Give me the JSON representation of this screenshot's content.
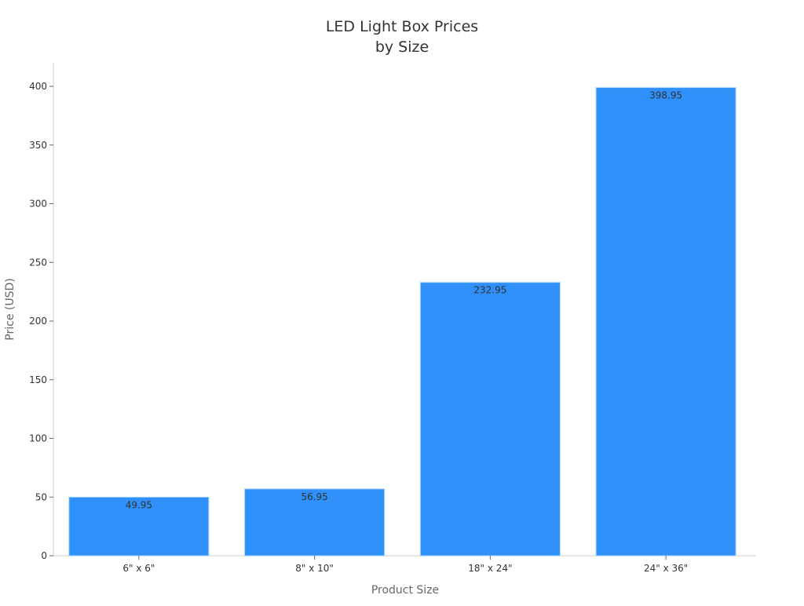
{
  "chart_data": {
    "type": "bar",
    "title": [
      "LED Light Box Prices",
      "by Size"
    ],
    "xlabel": "Product Size",
    "ylabel": "Price (USD)",
    "categories": [
      "6\" x 6\"",
      "8\" x 10\"",
      "18\" x 24\"",
      "24\" x 36\""
    ],
    "values": [
      49.95,
      56.95,
      232.95,
      398.95
    ],
    "data_labels": [
      "49.95",
      "56.95",
      "232.95",
      "398.95"
    ],
    "ylim": [
      0,
      420
    ],
    "yticks": [
      0,
      50,
      100,
      150,
      200,
      250,
      300,
      350,
      400
    ],
    "grid": false,
    "colors": {
      "bar": "#2e90f8",
      "bar_edge": "#a8d2fb",
      "axis": "#cccccc",
      "text": "#333333",
      "label": "#666666"
    }
  }
}
